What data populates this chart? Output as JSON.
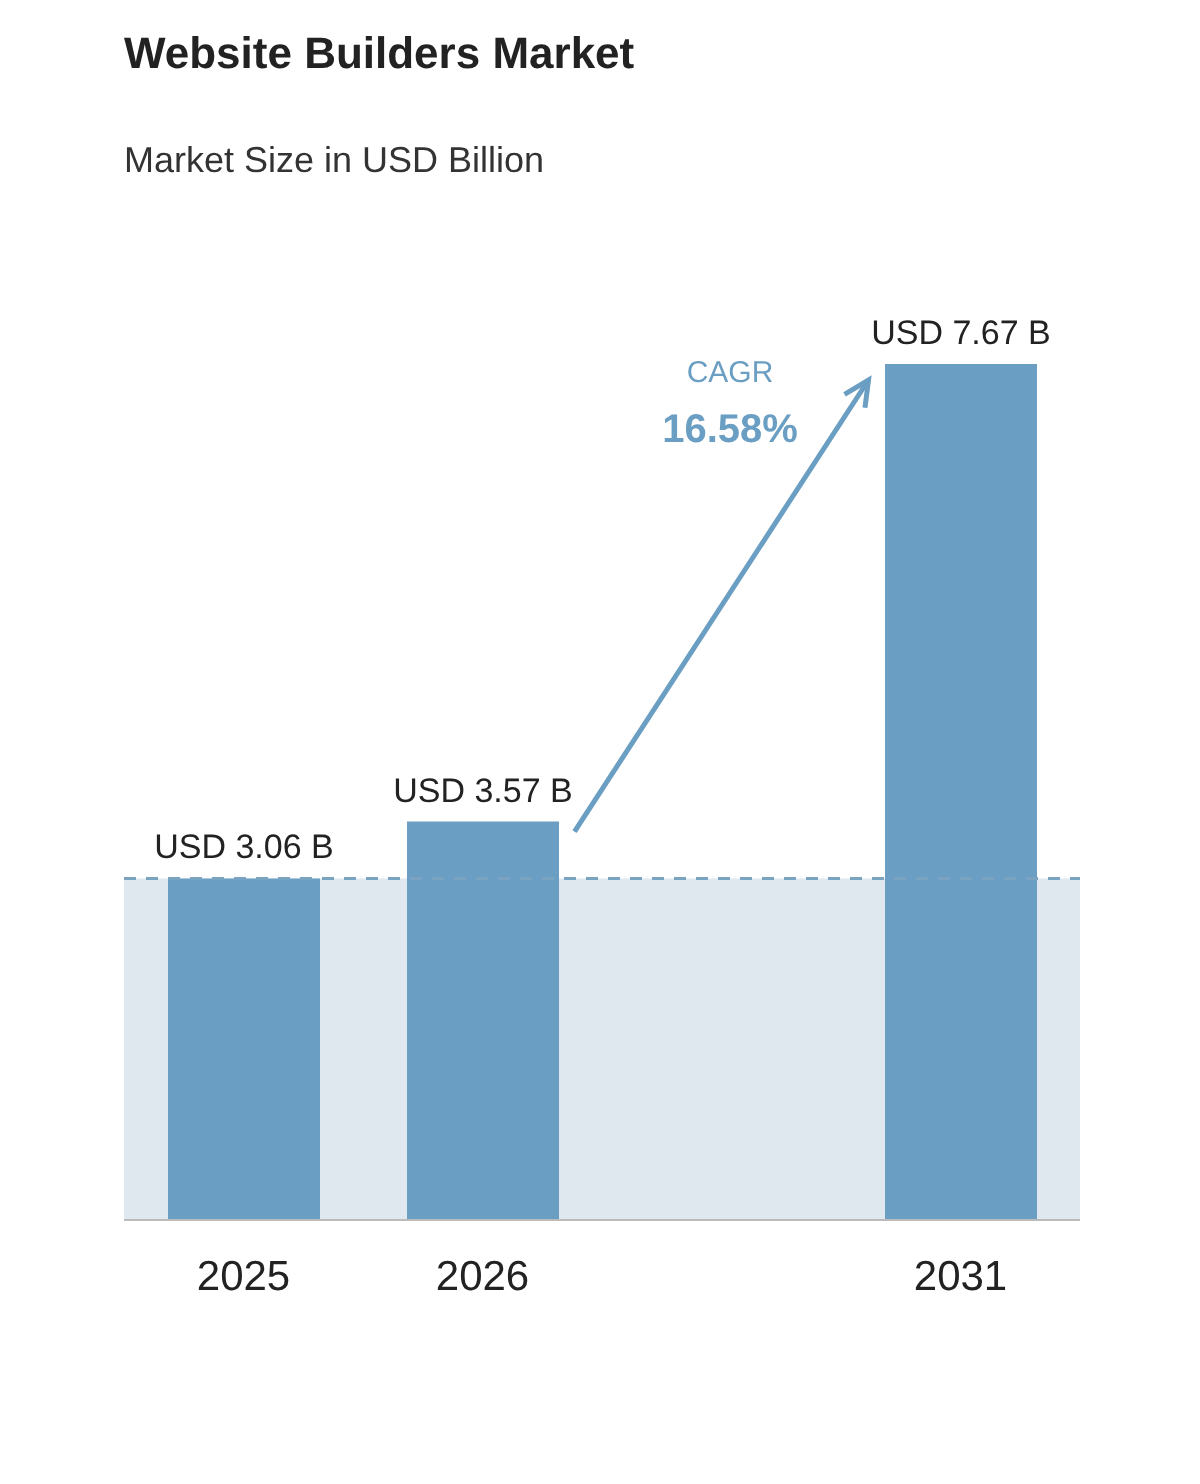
{
  "chart_data": {
    "type": "bar",
    "title": "Website Builders Market",
    "subtitle": "Market Size in USD Billion",
    "categories": [
      "2025",
      "2026",
      null,
      "2031"
    ],
    "values": [
      3.06,
      3.57,
      null,
      7.67
    ],
    "value_labels": [
      "USD 3.06 B",
      "USD 3.57 B",
      null,
      "USD 7.67 B"
    ],
    "color": "#6a9ec2",
    "ref_lines": [
      {
        "axis": "y",
        "value": 3.06,
        "color": "#7aa3c2",
        "line_style": "dashed"
      }
    ],
    "bands": [
      {
        "axis": "y",
        "from": 0,
        "to": 3.06,
        "color": "#dfe7ef"
      }
    ],
    "annotations": [
      "CAGR",
      "16.58%"
    ]
  }
}
